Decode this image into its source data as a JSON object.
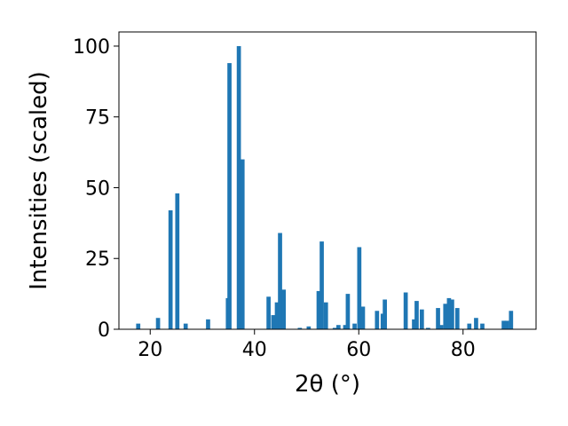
{
  "chart_data": {
    "type": "bar",
    "title": "",
    "xlabel": "2θ (°)",
    "ylabel": "Intensities (scaled)",
    "xlim": [
      14,
      94
    ],
    "ylim": [
      0,
      105
    ],
    "xticks": [
      20,
      40,
      60,
      80
    ],
    "yticks": [
      0,
      25,
      50,
      75,
      100
    ],
    "bar_width": 0.8,
    "color": "#1f77b4",
    "grid": false,
    "legend": "none",
    "x": [
      17.7,
      21.5,
      23.9,
      25.2,
      26.8,
      31.1,
      34.9,
      35.2,
      37.0,
      37.7,
      42.7,
      43.6,
      44.3,
      44.9,
      45.6,
      48.7,
      50.4,
      52.3,
      52.9,
      53.7,
      55.4,
      56.1,
      57.4,
      57.9,
      59.2,
      60.1,
      60.8,
      63.5,
      64.6,
      65.0,
      69.0,
      70.6,
      71.1,
      72.1,
      73.3,
      75.2,
      75.8,
      76.6,
      77.3,
      77.9,
      78.9,
      81.2,
      82.5,
      83.7,
      87.8,
      88.4,
      89.2
    ],
    "values": [
      2.0,
      4.0,
      42.0,
      48.0,
      2.0,
      3.5,
      11.0,
      94.0,
      100.0,
      60.0,
      11.5,
      5.0,
      9.5,
      34.0,
      14.0,
      0.5,
      1.0,
      13.5,
      31.0,
      9.5,
      0.5,
      1.5,
      1.5,
      12.5,
      2.0,
      29.0,
      8.0,
      6.5,
      5.5,
      10.5,
      13.0,
      3.5,
      10.0,
      7.0,
      0.5,
      7.5,
      1.5,
      9.0,
      11.0,
      10.5,
      7.5,
      2.0,
      4.0,
      2.0,
      3.0,
      3.0,
      6.5
    ]
  }
}
